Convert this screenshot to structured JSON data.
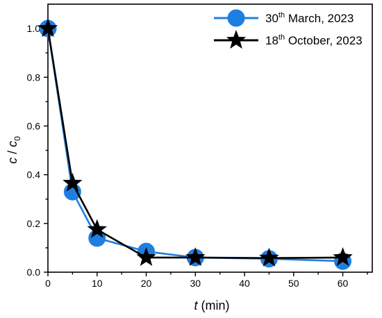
{
  "chart_data": {
    "type": "line",
    "xlabel": {
      "var": "t",
      "unit": " (min)"
    },
    "ylabel": {
      "var1": "c",
      "sep": " / ",
      "var2": "c",
      "sub": "0"
    },
    "xlim": [
      0,
      66
    ],
    "ylim": [
      0,
      1.1
    ],
    "x_ticks": [
      "0",
      "10",
      "20",
      "30",
      "40",
      "50",
      "60"
    ],
    "y_ticks": [
      "0.0",
      "0.2",
      "0.4",
      "0.6",
      "0.8",
      "1.0"
    ],
    "grid": false,
    "legend_position": "top-right",
    "series": [
      {
        "name": "30th March, 2023",
        "legend": {
          "pre": "30",
          "sup": "th",
          "post": " March, 2023"
        },
        "marker": "circle",
        "color": "#1e7fe0",
        "x": [
          0,
          5,
          10,
          20,
          30,
          45,
          60
        ],
        "y": [
          1.0,
          0.33,
          0.14,
          0.085,
          0.06,
          0.055,
          0.045
        ]
      },
      {
        "name": "18th October, 2023",
        "legend": {
          "pre": "18",
          "sup": "th",
          "post": " October, 2023"
        },
        "marker": "star",
        "color": "#000000",
        "x": [
          0,
          5,
          10,
          20,
          30,
          45,
          60
        ],
        "y": [
          1.0,
          0.365,
          0.175,
          0.06,
          0.06,
          0.058,
          0.06
        ]
      }
    ]
  }
}
